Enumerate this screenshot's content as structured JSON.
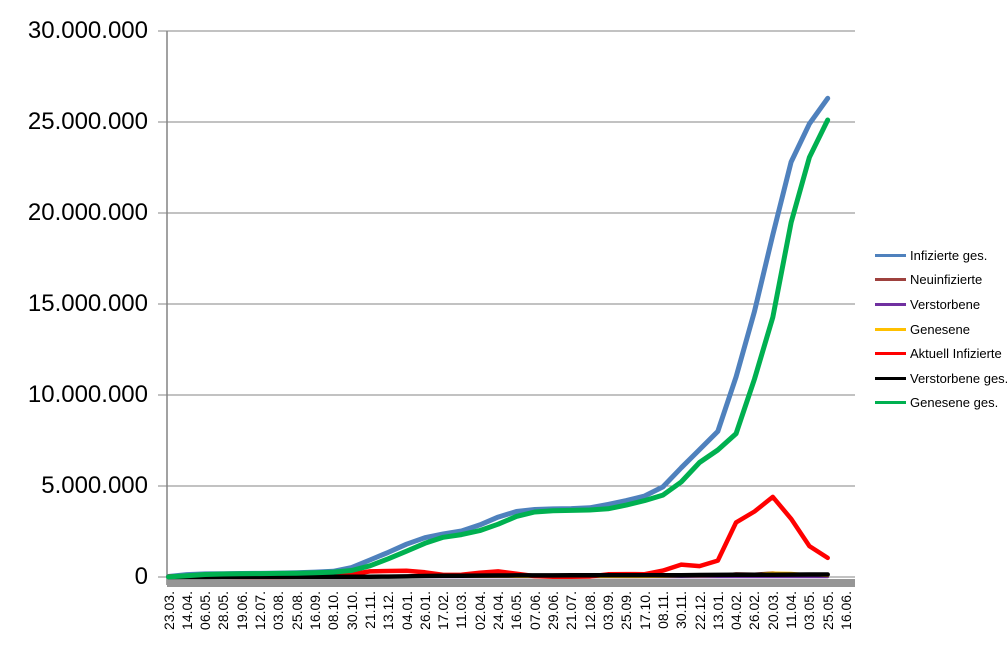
{
  "chart_data": {
    "type": "line",
    "title": "",
    "xlabel": "",
    "ylabel": "",
    "ylim": [
      0,
      30000000
    ],
    "grid": "horizontal",
    "legend_position": "right",
    "y_ticks": [
      {
        "value": 0,
        "label": "0"
      },
      {
        "value": 5000000,
        "label": "5.000.000"
      },
      {
        "value": 10000000,
        "label": "10.000.000"
      },
      {
        "value": 15000000,
        "label": "15.000.000"
      },
      {
        "value": 20000000,
        "label": "20.000.000"
      },
      {
        "value": 25000000,
        "label": "25.000.000"
      },
      {
        "value": 30000000,
        "label": "30.000.000"
      }
    ],
    "x_tick_labels": [
      "23.03.",
      "14.04.",
      "06.05.",
      "28.05.",
      "19.06.",
      "12.07.",
      "03.08.",
      "25.08.",
      "16.09.",
      "08.10.",
      "30.10.",
      "21.11.",
      "13.12.",
      "04.01.",
      "26.01.",
      "17.02.",
      "11.03.",
      "02.04.",
      "24.04.",
      "16.05.",
      "07.06.",
      "29.06.",
      "21.07.",
      "12.08.",
      "03.09.",
      "25.09.",
      "17.10.",
      "08.11.",
      "30.11.",
      "22.12.",
      "13.01.",
      "04.02.",
      "26.02.",
      "20.03.",
      "11.04.",
      "03.05.",
      "25.05.",
      "16.06."
    ],
    "series": [
      {
        "name": "Infizierte ges.",
        "color": "#4F81BD",
        "width": 5,
        "values": [
          29000,
          132000,
          168000,
          182000,
          190000,
          200000,
          212000,
          237000,
          268000,
          315000,
          518000,
          933000,
          1350000,
          1800000,
          2160000,
          2360000,
          2530000,
          2860000,
          3290000,
          3600000,
          3710000,
          3740000,
          3760000,
          3800000,
          3990000,
          4200000,
          4450000,
          4950000,
          6000000,
          7000000,
          8000000,
          11000000,
          14600000,
          18800000,
          22800000,
          24900000,
          26300000,
          null
        ]
      },
      {
        "name": "Neuinfizierte",
        "color": "#9E413E",
        "width": 2.5,
        "values": [
          4000,
          2200,
          1200,
          600,
          500,
          400,
          900,
          1500,
          2000,
          4000,
          18000,
          22000,
          28000,
          12000,
          11000,
          8000,
          14000,
          20000,
          23000,
          8000,
          3000,
          600,
          1200,
          5000,
          10000,
          8000,
          9000,
          34000,
          57000,
          45000,
          80000,
          200000,
          180000,
          250000,
          150000,
          100000,
          50000,
          null
        ]
      },
      {
        "name": "Verstorbene",
        "color": "#7030A0",
        "width": 2.5,
        "values": [
          30,
          250,
          180,
          60,
          30,
          10,
          10,
          10,
          10,
          20,
          80,
          300,
          500,
          800,
          900,
          550,
          250,
          200,
          250,
          150,
          80,
          40,
          20,
          15,
          30,
          60,
          70,
          150,
          300,
          400,
          350,
          200,
          250,
          300,
          250,
          200,
          100,
          null
        ]
      },
      {
        "name": "Genesene",
        "color": "#FFC000",
        "width": 2.5,
        "values": [
          800,
          4000,
          2500,
          1000,
          600,
          400,
          500,
          900,
          1500,
          2500,
          8000,
          15000,
          25000,
          20000,
          16000,
          12000,
          11000,
          16000,
          22000,
          16000,
          6000,
          1500,
          1000,
          3000,
          7000,
          8000,
          8000,
          20000,
          40000,
          50000,
          70000,
          120000,
          150000,
          230000,
          220000,
          130000,
          60000,
          null
        ]
      },
      {
        "name": "Aktuell Infizierte",
        "color": "#FF0000",
        "width": 4.5,
        "values": [
          26000,
          57000,
          22000,
          9000,
          6000,
          5000,
          7000,
          16000,
          20000,
          34000,
          152000,
          305000,
          330000,
          345000,
          260000,
          115000,
          128000,
          230000,
          310000,
          180000,
          50000,
          10000,
          12000,
          28000,
          148000,
          157000,
          155000,
          350000,
          680000,
          600000,
          900000,
          3000000,
          3600000,
          4400000,
          3200000,
          1700000,
          1050000,
          null
        ]
      },
      {
        "name": "Verstorbene ges.",
        "color": "#000000",
        "width": 4.5,
        "values": [
          120,
          3500,
          7200,
          8500,
          8900,
          9100,
          9200,
          9300,
          9400,
          9600,
          10500,
          14200,
          22000,
          35000,
          54000,
          67000,
          73000,
          77000,
          82000,
          86000,
          89300,
          90600,
          91400,
          91800,
          92200,
          93200,
          94700,
          96600,
          101300,
          108700,
          115600,
          118500,
          121600,
          126400,
          132100,
          135900,
          138100,
          null
        ]
      },
      {
        "name": "Genesene ges.",
        "color": "#00B050",
        "width": 5,
        "values": [
          3000,
          72000,
          139000,
          164000,
          175000,
          186000,
          196000,
          211000,
          238000,
          271000,
          355000,
          614000,
          1000000,
          1420000,
          1850000,
          2180000,
          2330000,
          2550000,
          2900000,
          3330000,
          3570000,
          3640000,
          3660000,
          3680000,
          3750000,
          3950000,
          4200000,
          4500000,
          5220000,
          6290000,
          6980000,
          7880000,
          10880000,
          14270000,
          19470000,
          23060000,
          25110000,
          null
        ]
      }
    ],
    "colors": {
      "gridline": "#848484",
      "axis_line": "#848484",
      "axis_band": "#969696",
      "background": "#FFFFFF"
    }
  }
}
